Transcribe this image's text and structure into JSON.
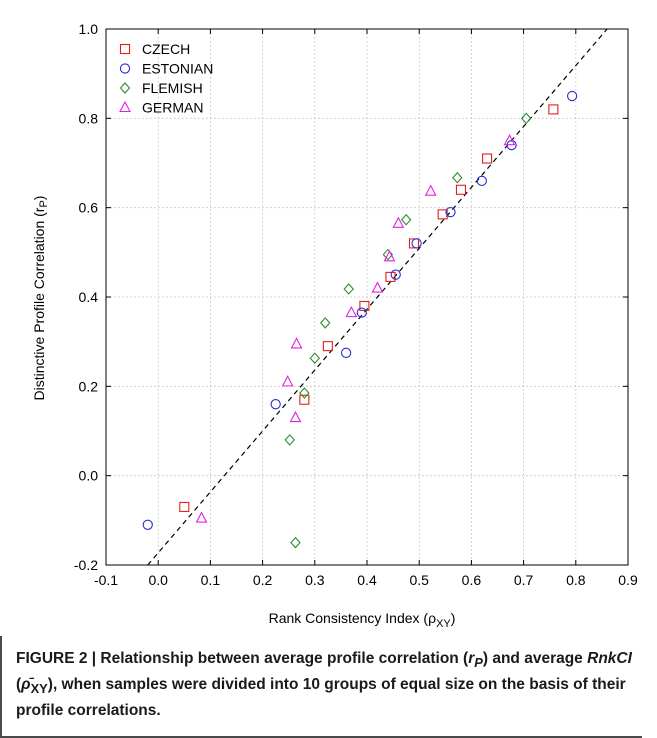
{
  "chart_data": {
    "type": "scatter",
    "xlabel": "Rank Consistency Index (ρ",
    "xlabel_sub": "XY",
    "xlabel_close": ")",
    "ylabel": "Distinctive Profile Correlation (r",
    "ylabel_sub": "P",
    "ylabel_close": ")",
    "xlim": [
      -0.1,
      0.9
    ],
    "ylim": [
      -0.2,
      1.0
    ],
    "xticks": [
      "-0.1",
      "0.0",
      "0.1",
      "0.2",
      "0.3",
      "0.4",
      "0.5",
      "0.6",
      "0.7",
      "0.8",
      "0.9"
    ],
    "yticks": [
      "-0.2",
      "0.0",
      "0.2",
      "0.4",
      "0.6",
      "0.8",
      "1.0"
    ],
    "grid": true,
    "legend_position": "top-left",
    "reference_line": {
      "style": "dashed",
      "points": [
        [
          -0.02,
          -0.2
        ],
        [
          0.86,
          1.0
        ]
      ]
    },
    "series": [
      {
        "name": "CZECH",
        "marker": "square",
        "color": "#e0201c",
        "points": [
          [
            0.05,
            -0.07
          ],
          [
            0.28,
            0.17
          ],
          [
            0.325,
            0.29
          ],
          [
            0.395,
            0.38
          ],
          [
            0.445,
            0.445
          ],
          [
            0.49,
            0.52
          ],
          [
            0.545,
            0.585
          ],
          [
            0.58,
            0.64
          ],
          [
            0.63,
            0.71
          ],
          [
            0.757,
            0.82
          ]
        ]
      },
      {
        "name": "ESTONIAN",
        "marker": "circle",
        "color": "#2a2ad8",
        "points": [
          [
            -0.02,
            -0.11
          ],
          [
            0.225,
            0.16
          ],
          [
            0.36,
            0.275
          ],
          [
            0.39,
            0.365
          ],
          [
            0.455,
            0.45
          ],
          [
            0.495,
            0.52
          ],
          [
            0.56,
            0.59
          ],
          [
            0.62,
            0.66
          ],
          [
            0.677,
            0.74
          ],
          [
            0.793,
            0.85
          ]
        ]
      },
      {
        "name": "FLEMISH",
        "marker": "diamond",
        "color": "#2e8b2e",
        "points": [
          [
            0.252,
            0.08
          ],
          [
            0.263,
            -0.15
          ],
          [
            0.28,
            0.185
          ],
          [
            0.3,
            0.263
          ],
          [
            0.32,
            0.342
          ],
          [
            0.365,
            0.418
          ],
          [
            0.44,
            0.495
          ],
          [
            0.475,
            0.573
          ],
          [
            0.573,
            0.667
          ],
          [
            0.705,
            0.8
          ]
        ]
      },
      {
        "name": "GERMAN",
        "marker": "triangle",
        "color": "#e020e0",
        "points": [
          [
            0.083,
            -0.095
          ],
          [
            0.248,
            0.21
          ],
          [
            0.263,
            0.13
          ],
          [
            0.265,
            0.295
          ],
          [
            0.37,
            0.365
          ],
          [
            0.42,
            0.42
          ],
          [
            0.443,
            0.49
          ],
          [
            0.46,
            0.565
          ],
          [
            0.522,
            0.637
          ],
          [
            0.673,
            0.75
          ]
        ]
      }
    ]
  },
  "caption": {
    "text": "FIGURE 2 | Relationship between average profile correlation (rP) and average RnkCI (ρ̄XY), when samples were divided into 10 groups of equal size on the basis of their profile correlations.",
    "part1": "FIGURE 2 | Relationship between average profile correlation (",
    "r": "r",
    "r_sub": "P",
    "part2": ") and average ",
    "rnkci": "RnkCI",
    "part3": " (",
    "rho_bar": "ρ̄",
    "rho_sub": "XY",
    "part4": "), when samples were divided into 10 groups of equal size on the basis of their profile correlations."
  }
}
